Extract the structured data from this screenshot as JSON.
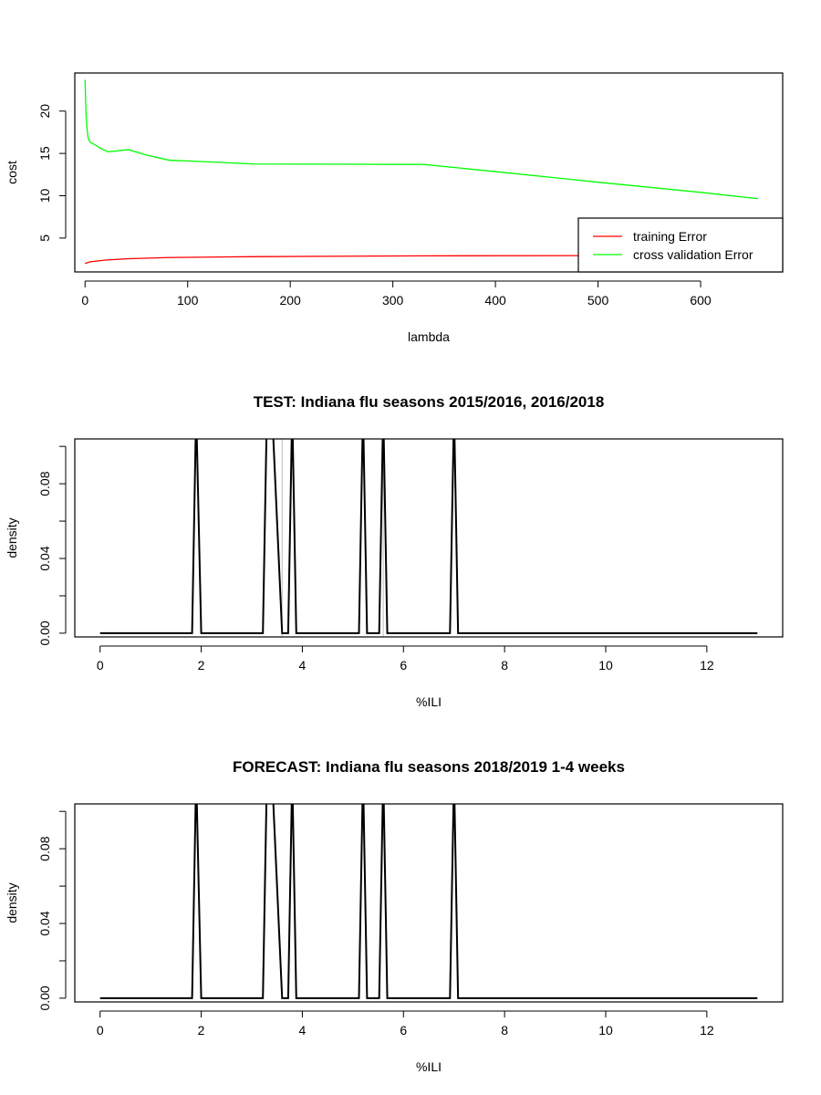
{
  "chart_data": [
    {
      "type": "line",
      "title": "",
      "xlabel": "lambda",
      "ylabel": "cost",
      "xlim": [
        -10,
        680
      ],
      "ylim": [
        1,
        24.5
      ],
      "x_ticks": [
        0,
        100,
        200,
        300,
        400,
        500,
        600
      ],
      "y_ticks": [
        5,
        10,
        15,
        20
      ],
      "legend_position": "bottom-right",
      "grid": false,
      "series": [
        {
          "name": "training Error",
          "color": "#ff0000",
          "points": [
            [
              0,
              2.0
            ],
            [
              5,
              2.2
            ],
            [
              20,
              2.4
            ],
            [
              40,
              2.55
            ],
            [
              80,
              2.7
            ],
            [
              160,
              2.8
            ],
            [
              330,
              2.9
            ],
            [
              656,
              2.95
            ]
          ]
        },
        {
          "name": "cross validation Error",
          "color": "#00ff00",
          "points": [
            [
              0,
              23.7
            ],
            [
              0.5,
              21.5
            ],
            [
              1,
              19.5
            ],
            [
              2,
              17.8
            ],
            [
              3,
              16.8
            ],
            [
              5,
              16.3
            ],
            [
              10,
              16.0
            ],
            [
              15,
              15.6
            ],
            [
              22,
              15.2
            ],
            [
              28,
              15.25
            ],
            [
              42,
              15.45
            ],
            [
              60,
              14.8
            ],
            [
              82,
              14.2
            ],
            [
              120,
              14.0
            ],
            [
              165,
              13.75
            ],
            [
              250,
              13.72
            ],
            [
              330,
              13.7
            ],
            [
              400,
              12.85
            ],
            [
              500,
              11.6
            ],
            [
              600,
              10.4
            ],
            [
              656,
              9.65
            ]
          ]
        }
      ]
    },
    {
      "type": "line",
      "title": "TEST: Indiana  flu seasons 2015/2016, 2016/2018",
      "xlabel": "%ILI",
      "ylabel": "density",
      "xlim": [
        -0.5,
        13.5
      ],
      "ylim": [
        -0.002,
        0.104
      ],
      "x_ticks": [
        0,
        2,
        4,
        6,
        8,
        10,
        12
      ],
      "y_ticks": [
        0.0,
        0.02,
        0.04,
        0.06,
        0.08,
        0.1
      ],
      "y_tick_labels": [
        "0.00",
        "",
        "0.04",
        "",
        "0.08",
        ""
      ],
      "grid": false,
      "vlines": [
        {
          "x": 3.6,
          "color": "#bebebe"
        },
        {
          "x": 5.6,
          "color": "#bebebe"
        }
      ],
      "series": [
        {
          "name": "",
          "color": "#000000",
          "points": [
            [
              0,
              0
            ],
            [
              1.82,
              0
            ],
            [
              1.9,
              0.12
            ],
            [
              2.0,
              0
            ],
            [
              3.22,
              0
            ],
            [
              3.3,
              0.12
            ],
            [
              3.4,
              0.12
            ],
            [
              3.6,
              0
            ],
            [
              3.72,
              0
            ],
            [
              3.8,
              0.12
            ],
            [
              3.88,
              0
            ],
            [
              5.12,
              0
            ],
            [
              5.2,
              0.12
            ],
            [
              5.28,
              0
            ],
            [
              5.52,
              0
            ],
            [
              5.6,
              0.12
            ],
            [
              5.68,
              0
            ],
            [
              6.92,
              0
            ],
            [
              7.0,
              0.12
            ],
            [
              7.08,
              0
            ],
            [
              13,
              0
            ]
          ]
        }
      ]
    },
    {
      "type": "line",
      "title": "FORECAST: Indiana flu seasons 2018/2019 1-4 weeks",
      "xlabel": "%ILI",
      "ylabel": "density",
      "xlim": [
        -0.5,
        13.5
      ],
      "ylim": [
        -0.002,
        0.104
      ],
      "x_ticks": [
        0,
        2,
        4,
        6,
        8,
        10,
        12
      ],
      "y_ticks": [
        0.0,
        0.02,
        0.04,
        0.06,
        0.08,
        0.1
      ],
      "y_tick_labels": [
        "0.00",
        "",
        "0.04",
        "",
        "0.08",
        ""
      ],
      "grid": false,
      "vlines": [],
      "series": [
        {
          "name": "",
          "color": "#000000",
          "points": [
            [
              0,
              0
            ],
            [
              1.82,
              0
            ],
            [
              1.9,
              0.12
            ],
            [
              2.0,
              0
            ],
            [
              3.22,
              0
            ],
            [
              3.3,
              0.12
            ],
            [
              3.4,
              0.12
            ],
            [
              3.6,
              0
            ],
            [
              3.72,
              0
            ],
            [
              3.8,
              0.12
            ],
            [
              3.88,
              0
            ],
            [
              5.12,
              0
            ],
            [
              5.2,
              0.12
            ],
            [
              5.28,
              0
            ],
            [
              5.52,
              0
            ],
            [
              5.6,
              0.12
            ],
            [
              5.68,
              0
            ],
            [
              6.92,
              0
            ],
            [
              7.0,
              0.12
            ],
            [
              7.08,
              0
            ],
            [
              13,
              0
            ]
          ]
        }
      ]
    }
  ]
}
